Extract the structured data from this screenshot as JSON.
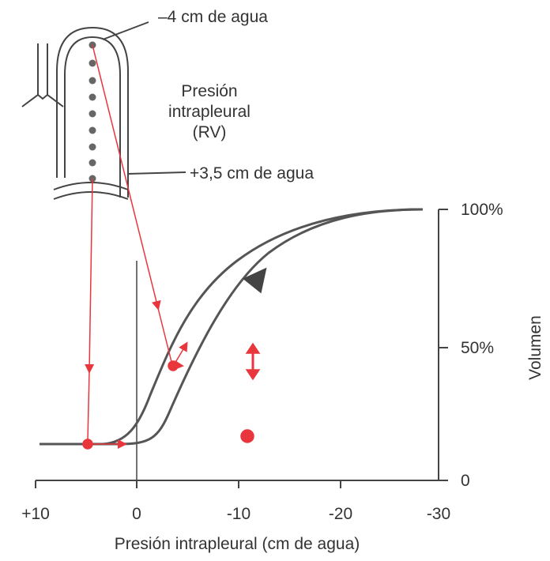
{
  "annotations": {
    "top_pressure": "–4 cm de agua",
    "pleural_label": [
      "Presión",
      "intrapleural",
      "(RV)"
    ],
    "bottom_pressure": "+3,5 cm de agua"
  },
  "x_axis": {
    "title": "Presión intrapleural (cm de agua)",
    "ticks": [
      "+10",
      "0",
      "-10",
      "-20",
      "-30"
    ]
  },
  "y_axis": {
    "title": "Volumen",
    "ticks": [
      "100%",
      "50%",
      "0"
    ]
  }
}
